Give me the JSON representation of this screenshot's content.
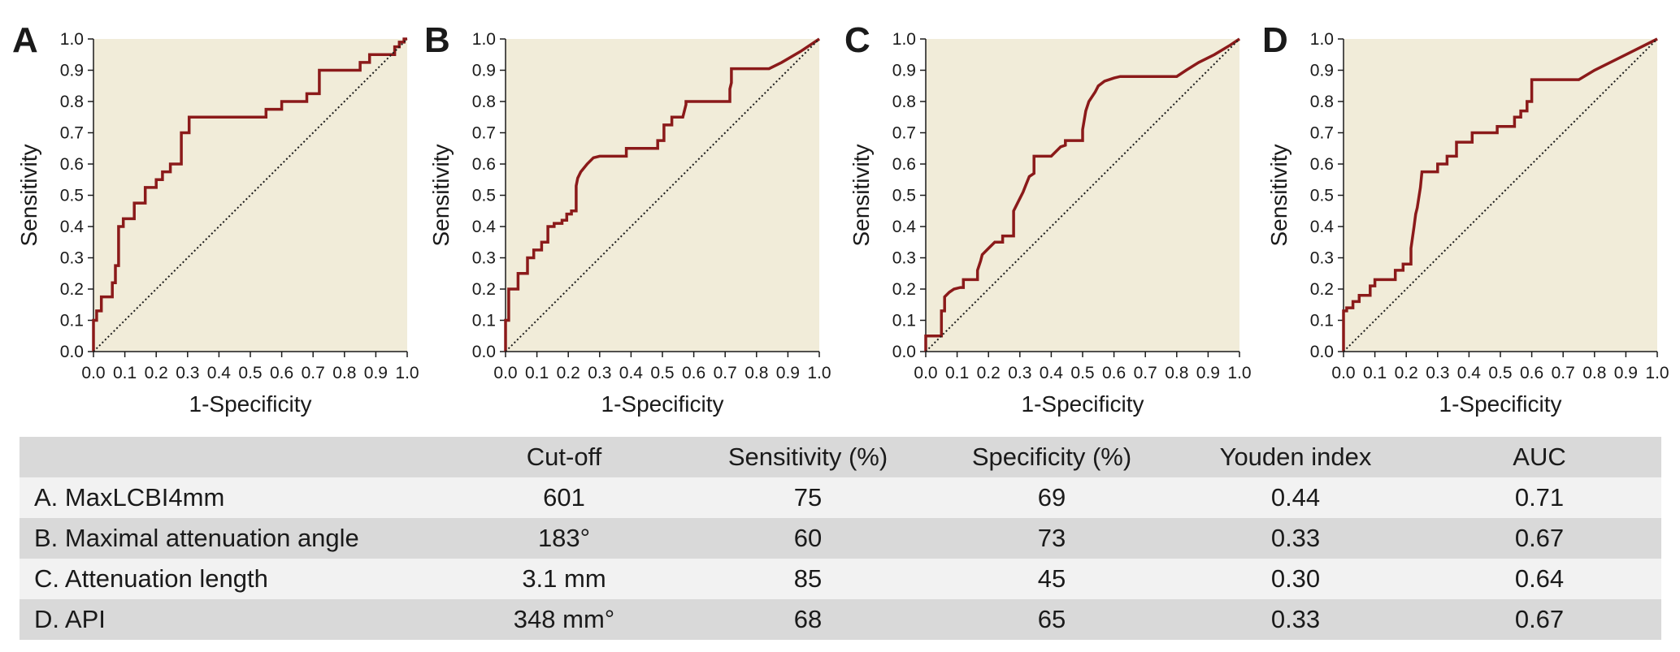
{
  "chart_data": [
    {
      "type": "line",
      "panel_label": "A",
      "xlabel": "1-Specificity",
      "ylabel": "Sensitivity",
      "xlim": [
        0,
        1
      ],
      "ylim": [
        0,
        1
      ],
      "x_ticks": [
        "0.0",
        "0.1",
        "0.2",
        "0.3",
        "0.4",
        "0.5",
        "0.6",
        "0.7",
        "0.8",
        "0.9",
        "1.0"
      ],
      "y_ticks": [
        "0.0",
        "0.1",
        "0.2",
        "0.3",
        "0.4",
        "0.5",
        "0.6",
        "0.7",
        "0.8",
        "0.9",
        "1.0"
      ],
      "grid": false,
      "series": [
        {
          "color": "#8b1a1a",
          "x": [
            0,
            0,
            0.01,
            0.01,
            0.025,
            0.025,
            0.06,
            0.06,
            0.07,
            0.07,
            0.08,
            0.08,
            0.095,
            0.095,
            0.13,
            0.13,
            0.165,
            0.165,
            0.2,
            0.2,
            0.22,
            0.22,
            0.245,
            0.245,
            0.28,
            0.28,
            0.305,
            0.305,
            0.55,
            0.55,
            0.6,
            0.6,
            0.68,
            0.68,
            0.72,
            0.72,
            0.85,
            0.85,
            0.88,
            0.88,
            0.96,
            0.96,
            0.975,
            0.975,
            0.99,
            0.99,
            1.0
          ],
          "y": [
            0,
            0.1,
            0.1,
            0.13,
            0.13,
            0.175,
            0.175,
            0.22,
            0.22,
            0.275,
            0.275,
            0.4,
            0.4,
            0.425,
            0.425,
            0.475,
            0.475,
            0.525,
            0.525,
            0.55,
            0.55,
            0.575,
            0.575,
            0.6,
            0.6,
            0.7,
            0.7,
            0.75,
            0.75,
            0.775,
            0.775,
            0.8,
            0.8,
            0.825,
            0.825,
            0.9,
            0.9,
            0.925,
            0.925,
            0.95,
            0.95,
            0.975,
            0.975,
            0.99,
            0.99,
            1.0,
            1.0
          ]
        },
        {
          "color": "#1a1a1a",
          "style": "dotted",
          "x": [
            0,
            1
          ],
          "y": [
            0,
            1
          ]
        }
      ]
    },
    {
      "type": "line",
      "panel_label": "B",
      "xlabel": "1-Specificity",
      "ylabel": "Sensitivity",
      "xlim": [
        0,
        1
      ],
      "ylim": [
        0,
        1
      ],
      "x_ticks": [
        "0.0",
        "0.1",
        "0.2",
        "0.3",
        "0.4",
        "0.5",
        "0.6",
        "0.7",
        "0.8",
        "0.9",
        "1.0"
      ],
      "y_ticks": [
        "0.0",
        "0.1",
        "0.2",
        "0.3",
        "0.4",
        "0.5",
        "0.6",
        "0.7",
        "0.8",
        "0.9",
        "1.0"
      ],
      "grid": false,
      "series": [
        {
          "color": "#8b1a1a",
          "x": [
            0,
            0,
            0.01,
            0.01,
            0.04,
            0.04,
            0.07,
            0.07,
            0.09,
            0.09,
            0.115,
            0.115,
            0.135,
            0.135,
            0.155,
            0.155,
            0.18,
            0.18,
            0.195,
            0.195,
            0.21,
            0.21,
            0.225,
            0.225,
            0.23,
            0.24,
            0.26,
            0.28,
            0.3,
            0.3,
            0.385,
            0.385,
            0.485,
            0.485,
            0.505,
            0.505,
            0.53,
            0.53,
            0.565,
            0.575,
            0.575,
            0.715,
            0.715,
            0.72,
            0.72,
            0.84,
            0.88,
            0.94,
            1.0
          ],
          "y": [
            0,
            0.1,
            0.1,
            0.2,
            0.2,
            0.25,
            0.25,
            0.3,
            0.3,
            0.325,
            0.325,
            0.35,
            0.35,
            0.4,
            0.4,
            0.41,
            0.41,
            0.42,
            0.42,
            0.44,
            0.44,
            0.45,
            0.45,
            0.53,
            0.555,
            0.575,
            0.6,
            0.62,
            0.625,
            0.625,
            0.625,
            0.65,
            0.65,
            0.675,
            0.675,
            0.725,
            0.725,
            0.75,
            0.75,
            0.79,
            0.8,
            0.8,
            0.84,
            0.86,
            0.905,
            0.905,
            0.925,
            0.96,
            1.0
          ]
        },
        {
          "color": "#1a1a1a",
          "style": "dotted",
          "x": [
            0,
            1
          ],
          "y": [
            0,
            1
          ]
        }
      ]
    },
    {
      "type": "line",
      "panel_label": "C",
      "xlabel": "1-Specificity",
      "ylabel": "Sensitivity",
      "xlim": [
        0,
        1
      ],
      "ylim": [
        0,
        1
      ],
      "x_ticks": [
        "0.0",
        "0.1",
        "0.2",
        "0.3",
        "0.4",
        "0.5",
        "0.6",
        "0.7",
        "0.8",
        "0.9",
        "1.0"
      ],
      "y_ticks": [
        "0.0",
        "0.1",
        "0.2",
        "0.3",
        "0.4",
        "0.5",
        "0.6",
        "0.7",
        "0.8",
        "0.9",
        "1.0"
      ],
      "grid": false,
      "series": [
        {
          "color": "#8b1a1a",
          "x": [
            0,
            0,
            0.05,
            0.05,
            0.06,
            0.06,
            0.075,
            0.09,
            0.11,
            0.12,
            0.12,
            0.165,
            0.165,
            0.175,
            0.18,
            0.2,
            0.22,
            0.245,
            0.245,
            0.28,
            0.28,
            0.295,
            0.31,
            0.32,
            0.33,
            0.345,
            0.345,
            0.4,
            0.43,
            0.445,
            0.445,
            0.5,
            0.5,
            0.51,
            0.52,
            0.54,
            0.55,
            0.57,
            0.6,
            0.62,
            0.8,
            0.83,
            0.87,
            0.92,
            0.97,
            1.0
          ],
          "y": [
            0,
            0.05,
            0.05,
            0.13,
            0.13,
            0.175,
            0.19,
            0.2,
            0.205,
            0.205,
            0.23,
            0.23,
            0.26,
            0.29,
            0.31,
            0.33,
            0.35,
            0.35,
            0.37,
            0.37,
            0.45,
            0.48,
            0.51,
            0.535,
            0.56,
            0.57,
            0.625,
            0.625,
            0.655,
            0.66,
            0.675,
            0.675,
            0.71,
            0.77,
            0.8,
            0.83,
            0.85,
            0.865,
            0.875,
            0.88,
            0.88,
            0.9,
            0.925,
            0.95,
            0.98,
            1.0
          ]
        },
        {
          "color": "#1a1a1a",
          "style": "dotted",
          "x": [
            0,
            1
          ],
          "y": [
            0,
            1
          ]
        }
      ]
    },
    {
      "type": "line",
      "panel_label": "D",
      "xlabel": "1-Specificity",
      "ylabel": "Sensitivity",
      "xlim": [
        0,
        1
      ],
      "ylim": [
        0,
        1
      ],
      "x_ticks": [
        "0.0",
        "0.1",
        "0.2",
        "0.3",
        "0.4",
        "0.5",
        "0.6",
        "0.7",
        "0.8",
        "0.9",
        "1.0"
      ],
      "y_ticks": [
        "0.0",
        "0.1",
        "0.2",
        "0.3",
        "0.4",
        "0.5",
        "0.6",
        "0.7",
        "0.8",
        "0.9",
        "1.0"
      ],
      "grid": false,
      "series": [
        {
          "color": "#8b1a1a",
          "x": [
            0,
            0,
            0.01,
            0.01,
            0.03,
            0.03,
            0.05,
            0.05,
            0.085,
            0.085,
            0.1,
            0.1,
            0.165,
            0.165,
            0.19,
            0.19,
            0.215,
            0.215,
            0.225,
            0.23,
            0.235,
            0.245,
            0.25,
            0.3,
            0.3,
            0.33,
            0.33,
            0.36,
            0.36,
            0.41,
            0.41,
            0.49,
            0.49,
            0.545,
            0.545,
            0.565,
            0.565,
            0.585,
            0.585,
            0.6,
            0.6,
            0.75,
            0.8,
            0.9,
            1.0
          ],
          "y": [
            0,
            0.13,
            0.13,
            0.14,
            0.14,
            0.16,
            0.16,
            0.18,
            0.18,
            0.21,
            0.21,
            0.23,
            0.23,
            0.26,
            0.26,
            0.28,
            0.28,
            0.33,
            0.4,
            0.44,
            0.46,
            0.525,
            0.575,
            0.575,
            0.6,
            0.6,
            0.625,
            0.625,
            0.67,
            0.67,
            0.7,
            0.7,
            0.72,
            0.72,
            0.75,
            0.75,
            0.77,
            0.77,
            0.8,
            0.8,
            0.87,
            0.87,
            0.9,
            0.95,
            1.0
          ]
        },
        {
          "color": "#1a1a1a",
          "style": "dotted",
          "x": [
            0,
            1
          ],
          "y": [
            0,
            1
          ]
        }
      ]
    }
  ],
  "colors": {
    "roc_curve": "#8b1a1a",
    "plot_background": "#f1ecd9",
    "reference_line": "#1a1a1a",
    "table_header_bg": "#d9d9d9",
    "table_row_light": "#f2f2f2",
    "table_row_dark": "#d9d9d9"
  },
  "table": {
    "headers": [
      "",
      "Cut-off",
      "Sensitivity (%)",
      "Specificity (%)",
      "Youden index",
      "AUC"
    ],
    "rows": [
      [
        "A. MaxLCBI4mm",
        "601",
        "75",
        "69",
        "0.44",
        "0.71"
      ],
      [
        "B. Maximal attenuation angle",
        "183°",
        "60",
        "73",
        "0.33",
        "0.67"
      ],
      [
        "C. Attenuation length",
        "3.1 mm",
        "85",
        "45",
        "0.30",
        "0.64"
      ],
      [
        "D. API",
        "348 mm°",
        "68",
        "65",
        "0.33",
        "0.67"
      ]
    ]
  }
}
